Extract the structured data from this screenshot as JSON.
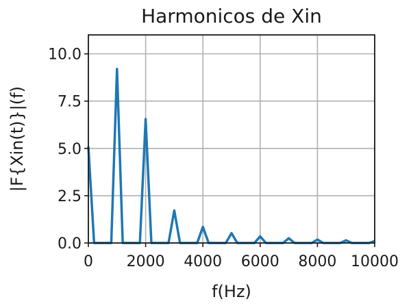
{
  "chart_data": {
    "type": "line",
    "title": "Harmonicos de Xin",
    "xlabel": "f(Hz)",
    "ylabel": "|F{Xin(t)}|(f)",
    "xlim": [
      0,
      10000
    ],
    "ylim": [
      0,
      11
    ],
    "xticks": [
      0,
      2000,
      4000,
      6000,
      8000,
      10000
    ],
    "yticks": [
      0.0,
      2.5,
      5.0,
      7.5,
      10.0
    ],
    "xtick_labels": [
      "0",
      "2000",
      "4000",
      "6000",
      "8000",
      "10000"
    ],
    "ytick_labels": [
      "0.0",
      "2.5",
      "5.0",
      "7.5",
      "10.0"
    ],
    "grid": true,
    "series": [
      {
        "color": "#1f77b4",
        "x": [
          0,
          200,
          800,
          1000,
          1200,
          1800,
          2000,
          2200,
          2800,
          3000,
          3200,
          3800,
          4000,
          4200,
          4800,
          5000,
          5200,
          5800,
          6000,
          6200,
          6800,
          7000,
          7200,
          7800,
          8000,
          8200,
          8800,
          9000,
          9200,
          9800,
          10000
        ],
        "y": [
          5.1,
          0.0,
          0.0,
          9.2,
          0.0,
          0.0,
          6.55,
          0.0,
          0.0,
          1.72,
          0.0,
          0.0,
          0.85,
          0.0,
          0.0,
          0.52,
          0.0,
          0.0,
          0.35,
          0.0,
          0.0,
          0.25,
          0.0,
          0.0,
          0.18,
          0.0,
          0.0,
          0.14,
          0.0,
          0.0,
          0.1
        ]
      }
    ]
  }
}
